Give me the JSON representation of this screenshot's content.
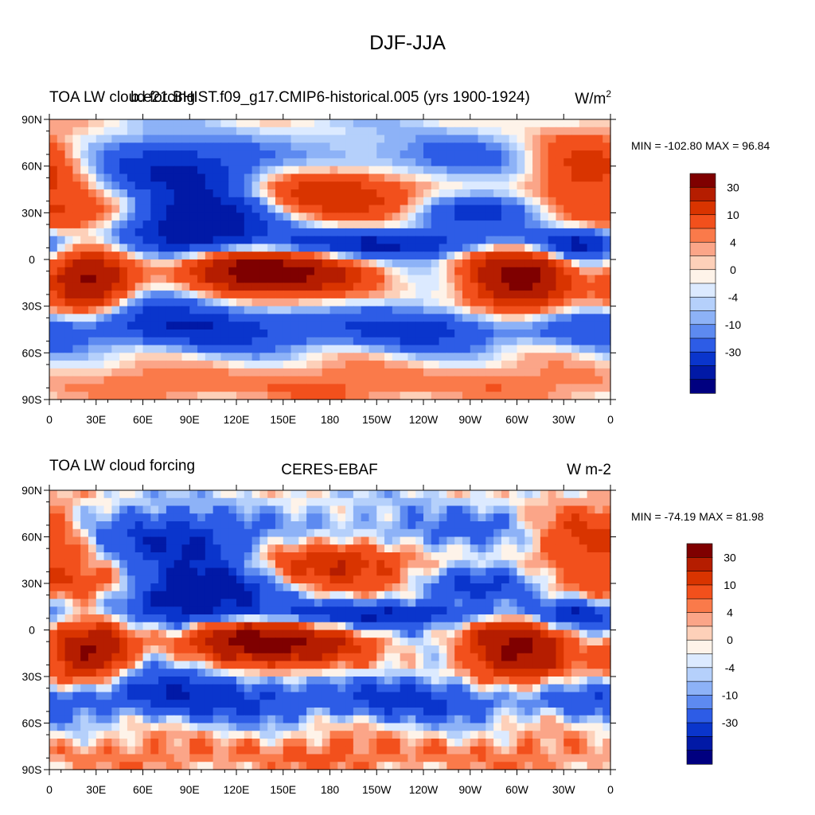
{
  "figure": {
    "title": "DJF-JJA"
  },
  "chart_data": [
    {
      "type": "heatmap",
      "left_title": "TOA LW cloud forcing",
      "center_title": "b.e21.BHIST.f09_g17.CMIP6-historical.005 (yrs 1900-1924)",
      "right_title_base": "W/m",
      "right_title_sup": "2",
      "stats": "MIN = -102.80 MAX =  96.84",
      "x_ticks": [
        "0",
        "30E",
        "60E",
        "90E",
        "120E",
        "150E",
        "180",
        "150W",
        "120W",
        "90W",
        "60W",
        "30W",
        "0"
      ],
      "y_ticks": [
        "90N",
        "60N",
        "30N",
        "0",
        "30S",
        "60S",
        "90S"
      ],
      "xlim": [
        0,
        360
      ],
      "ylim": [
        -90,
        90
      ],
      "colorbar": {
        "labels": [
          "30",
          "10",
          "4",
          "0",
          "-4",
          "-10",
          "-30"
        ],
        "colors": [
          "#7f0000",
          "#b51d00",
          "#d93400",
          "#f2501c",
          "#fa7a4a",
          "#fba588",
          "#fdd0b9",
          "#fef3e9",
          "#dceaff",
          "#b5d0fb",
          "#8db2f7",
          "#5d8af0",
          "#2d5ce6",
          "#0a35cc",
          "#0119a6",
          "#000080"
        ]
      },
      "field": "model"
    },
    {
      "type": "heatmap",
      "left_title": "TOA LW cloud forcing",
      "center_title": "CERES-EBAF",
      "right_title_base": "W m-2",
      "right_title_sup": "",
      "stats": "MIN = -74.19 MAX =  81.98",
      "x_ticks": [
        "0",
        "30E",
        "60E",
        "90E",
        "120E",
        "150E",
        "180",
        "150W",
        "120W",
        "90W",
        "60W",
        "30W",
        "0"
      ],
      "y_ticks": [
        "90N",
        "60N",
        "30N",
        "0",
        "30S",
        "60S",
        "90S"
      ],
      "xlim": [
        0,
        360
      ],
      "ylim": [
        -90,
        90
      ],
      "colorbar": {
        "labels": [
          "30",
          "10",
          "4",
          "0",
          "-4",
          "-10",
          "-30"
        ],
        "colors": [
          "#7f0000",
          "#b51d00",
          "#d93400",
          "#f2501c",
          "#fa7a4a",
          "#fba588",
          "#fdd0b9",
          "#fef3e9",
          "#dceaff",
          "#b5d0fb",
          "#8db2f7",
          "#5d8af0",
          "#2d5ce6",
          "#0a35cc",
          "#0119a6",
          "#000080"
        ]
      },
      "field": "obs"
    }
  ]
}
